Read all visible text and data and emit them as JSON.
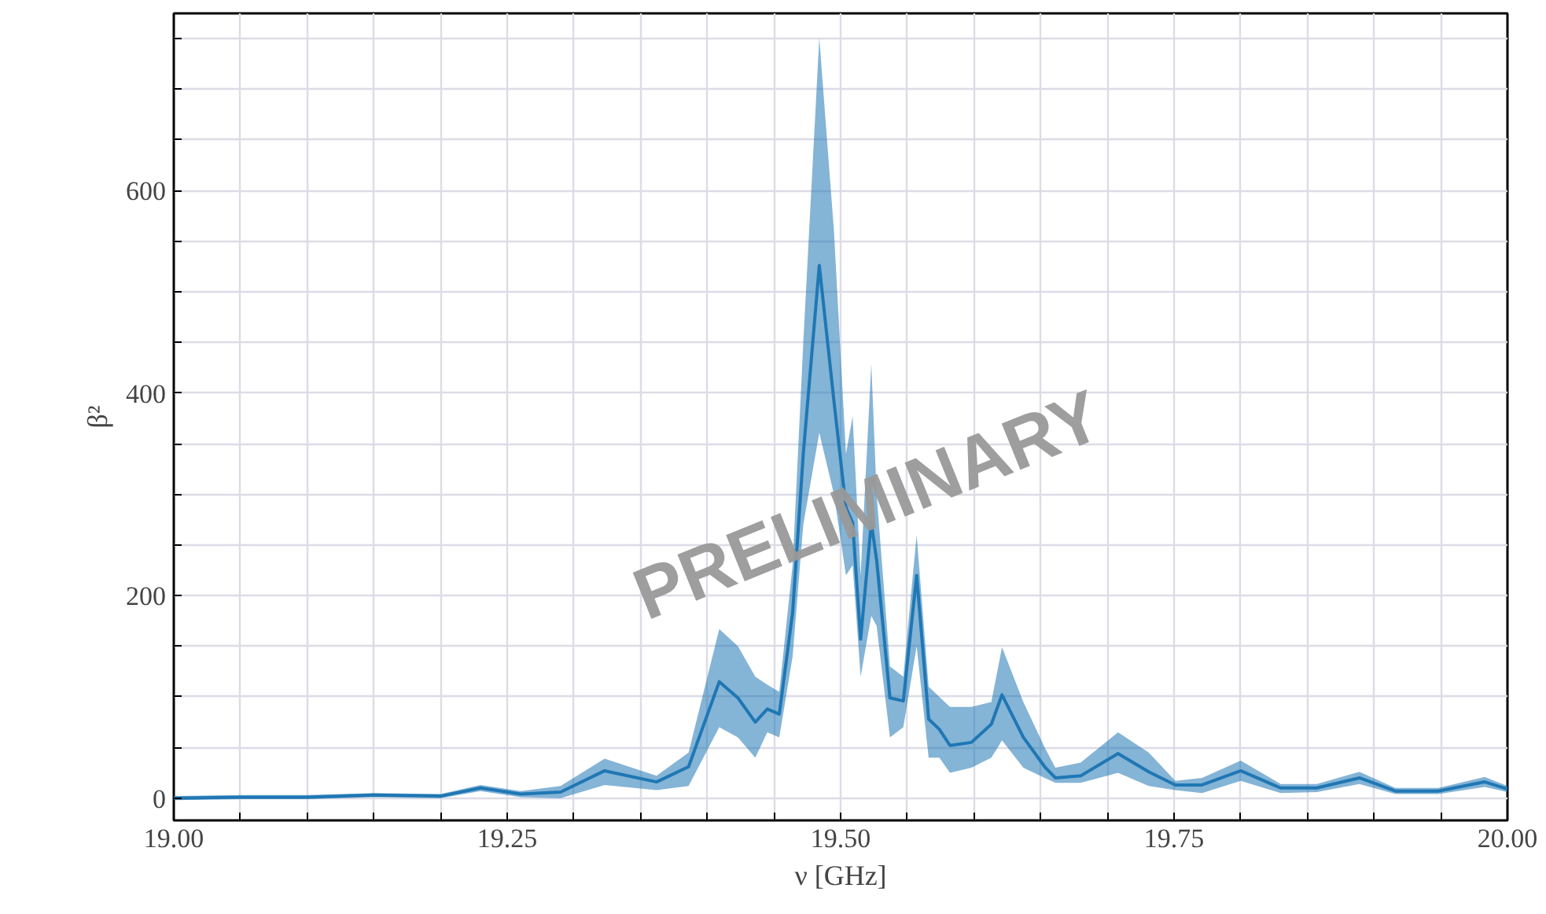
{
  "chart_data": {
    "type": "line",
    "xlabel": "ν [GHz]",
    "ylabel": "β²",
    "xlim": [
      19.0,
      20.0
    ],
    "ylim": [
      -22,
      775
    ],
    "xticks": [
      {
        "value": 19.0,
        "label": "19.00"
      },
      {
        "value": 19.05,
        "label": null
      },
      {
        "value": 19.1,
        "label": null
      },
      {
        "value": 19.15,
        "label": null
      },
      {
        "value": 19.2,
        "label": null
      },
      {
        "value": 19.25,
        "label": "19.25"
      },
      {
        "value": 19.3,
        "label": null
      },
      {
        "value": 19.35,
        "label": null
      },
      {
        "value": 19.4,
        "label": null
      },
      {
        "value": 19.45,
        "label": null
      },
      {
        "value": 19.5,
        "label": "19.50"
      },
      {
        "value": 19.55,
        "label": null
      },
      {
        "value": 19.6,
        "label": null
      },
      {
        "value": 19.65,
        "label": null
      },
      {
        "value": 19.7,
        "label": null
      },
      {
        "value": 19.75,
        "label": "19.75"
      },
      {
        "value": 19.8,
        "label": null
      },
      {
        "value": 19.85,
        "label": null
      },
      {
        "value": 19.9,
        "label": null
      },
      {
        "value": 19.95,
        "label": null
      },
      {
        "value": 20.0,
        "label": "20.00"
      }
    ],
    "yticks": [
      0,
      {
        "value": 50,
        "label": null
      },
      {
        "value": 100,
        "label": null
      },
      {
        "value": 150,
        "label": null
      },
      200,
      {
        "value": 250,
        "label": null
      },
      {
        "value": 300,
        "label": null
      },
      {
        "value": 350,
        "label": null
      },
      400,
      {
        "value": 450,
        "label": null
      },
      {
        "value": 500,
        "label": null
      },
      {
        "value": 550,
        "label": null
      },
      600,
      {
        "value": 650,
        "label": null
      },
      {
        "value": 700,
        "label": null
      },
      {
        "value": 750,
        "label": null
      }
    ],
    "grid": true,
    "marker": "none",
    "line_style": "solid",
    "annotations": [
      {
        "text": "PRELIMINARY",
        "x": 19.52,
        "y": 290
      }
    ],
    "series": [
      {
        "color": "#1f77b4",
        "x": [
          19.0,
          19.05,
          19.1,
          19.15,
          19.2,
          19.23,
          19.26,
          19.29,
          19.323,
          19.362,
          19.386,
          19.409,
          19.423,
          19.436,
          19.445,
          19.454,
          19.464,
          19.472,
          19.484,
          19.495,
          19.504,
          19.509,
          19.515,
          19.523,
          19.527,
          19.537,
          19.547,
          19.557,
          19.566,
          19.574,
          19.582,
          19.598,
          19.613,
          19.621,
          19.637,
          19.653,
          19.661,
          19.68,
          19.708,
          19.731,
          19.751,
          19.771,
          19.8,
          19.83,
          19.857,
          19.889,
          19.916,
          19.948,
          19.983,
          20.0
        ],
        "values": [
          0,
          1,
          1,
          3,
          2,
          10,
          4,
          6,
          27,
          16,
          31,
          115,
          99,
          75,
          88,
          83,
          183,
          340,
          526,
          392,
          287,
          272,
          157,
          272,
          235,
          99,
          96,
          220,
          78,
          68,
          52,
          55,
          73,
          102,
          60,
          31,
          20,
          22,
          44,
          26,
          13,
          13,
          27,
          10,
          10,
          20,
          7,
          7,
          16,
          9
        ],
        "lower": [
          -2,
          -1,
          -1,
          1,
          0,
          7,
          1,
          0,
          13,
          8,
          12,
          70,
          60,
          40,
          65,
          60,
          140,
          270,
          361,
          300,
          220,
          230,
          120,
          180,
          170,
          60,
          70,
          150,
          40,
          40,
          25,
          30,
          40,
          57,
          30,
          20,
          15,
          15,
          25,
          12,
          8,
          5,
          17,
          5,
          6,
          14,
          4,
          4,
          11,
          6
        ],
        "upper": [
          2,
          3,
          3,
          5,
          4,
          13,
          7,
          12,
          39,
          22,
          45,
          167,
          150,
          120,
          112,
          105,
          230,
          450,
          751,
          560,
          340,
          377,
          220,
          429,
          300,
          130,
          120,
          260,
          110,
          100,
          90,
          90,
          95,
          149,
          95,
          50,
          30,
          35,
          65,
          45,
          17,
          20,
          37,
          14,
          14,
          26,
          10,
          10,
          21,
          12
        ]
      }
    ]
  }
}
